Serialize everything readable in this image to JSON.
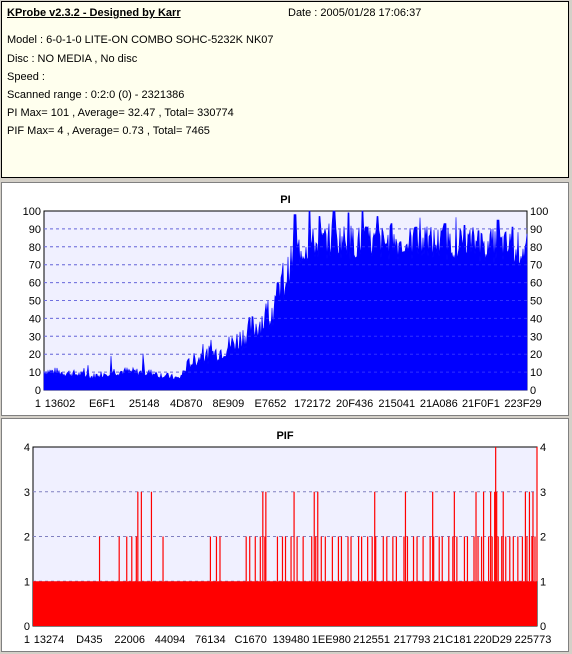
{
  "info": {
    "title": "KProbe v2.3.2 - Designed by Karr",
    "date": "Date : 2005/01/28 17:06:37",
    "lines": [
      "Model : 6-0-1-0 LITE-ON COMBO SOHC-5232K NK07",
      "Disc : NO MEDIA , No disc",
      "Speed :",
      "Scanned range : 0:2:0 (0) - 2321386",
      "PI Max= 101 , Average= 32.47 , Total= 330774",
      "PIF Max= 4 , Average= 0.73 , Total= 7465"
    ]
  },
  "colors": {
    "pi": "#0000ff",
    "pif": "#ff0000",
    "plot_bg": "#f0f0ff",
    "grid": "#8080c0"
  },
  "chart_data": [
    {
      "type": "area",
      "title": "PI",
      "ylim": [
        0,
        100
      ],
      "yticks": [
        0,
        10,
        20,
        30,
        40,
        50,
        60,
        70,
        80,
        90,
        100
      ],
      "xticks": [
        "13602",
        "E6F1",
        "25148",
        "4D870",
        "8E909",
        "E7652",
        "172172",
        "20F436",
        "215041",
        "21A086",
        "21F0F1",
        "223F29"
      ],
      "x_first_label": "1",
      "profile": [
        [
          0,
          10
        ],
        [
          5,
          9
        ],
        [
          10,
          7
        ],
        [
          14,
          10
        ],
        [
          22,
          9
        ],
        [
          28,
          6
        ],
        [
          30,
          14
        ],
        [
          32,
          17
        ],
        [
          36,
          20
        ],
        [
          40,
          26
        ],
        [
          44,
          34
        ],
        [
          48,
          44
        ],
        [
          50,
          60
        ],
        [
          52,
          75
        ],
        [
          54,
          78
        ],
        [
          60,
          82
        ],
        [
          66,
          80
        ],
        [
          72,
          80
        ],
        [
          80,
          80
        ],
        [
          88,
          80
        ],
        [
          95,
          78
        ],
        [
          100,
          76
        ]
      ],
      "peaks": [
        [
          52,
          98
        ],
        [
          55,
          101
        ],
        [
          57,
          97
        ],
        [
          60,
          100
        ],
        [
          63,
          99
        ],
        [
          66,
          101
        ],
        [
          69,
          97
        ],
        [
          72,
          93
        ],
        [
          77,
          91
        ],
        [
          83,
          93
        ],
        [
          87,
          92
        ],
        [
          90,
          89
        ],
        [
          94,
          95
        ],
        [
          97,
          91
        ]
      ]
    },
    {
      "type": "area",
      "title": "PIF",
      "ylim": [
        0,
        4
      ],
      "yticks": [
        0,
        1,
        2,
        3,
        4
      ],
      "xticks": [
        "13274",
        "D435",
        "22006",
        "44094",
        "76134",
        "C1670",
        "139480",
        "1EE980",
        "212551",
        "217793",
        "21C181",
        "220D29",
        "225773"
      ],
      "x_first_label": "1",
      "baseline": 1,
      "twos": [
        13.2,
        17.1,
        18.6,
        19.6,
        20.5,
        25.8,
        35.2,
        36.4,
        37.1,
        42.3,
        43.0,
        44.1,
        45.1,
        46.0,
        48.5,
        49.5,
        50.1,
        51.2,
        52.4,
        53.6,
        55.3,
        56.1,
        57.2,
        58.0,
        59.4,
        60.6,
        61.2,
        62.5,
        63.1,
        64.6,
        65.2,
        66.4,
        67.3,
        68.0,
        69.5,
        70.2,
        71.4,
        72.1,
        73.6,
        74.3,
        75.5,
        76.2,
        77.4,
        78.8,
        79.5,
        80.6,
        81.2,
        82.5,
        83.3,
        84.1,
        85.6,
        86.2,
        87.5,
        88.3,
        89.0,
        90.4,
        91.1,
        92.3,
        93.0,
        93.8,
        94.6,
        95.3,
        96.2,
        97.1,
        98.0,
        99.0,
        99.6
      ],
      "threes": [
        20.8,
        21.5,
        23.5,
        45.6,
        46.2,
        51.8,
        55.8,
        56.5,
        67.8,
        73.9,
        79.3,
        83.6,
        87.9,
        89.4,
        90.8,
        91.6,
        92.0,
        93.3,
        97.7,
        98.5,
        99.2
      ],
      "fours": [
        91.8,
        100
      ]
    }
  ]
}
